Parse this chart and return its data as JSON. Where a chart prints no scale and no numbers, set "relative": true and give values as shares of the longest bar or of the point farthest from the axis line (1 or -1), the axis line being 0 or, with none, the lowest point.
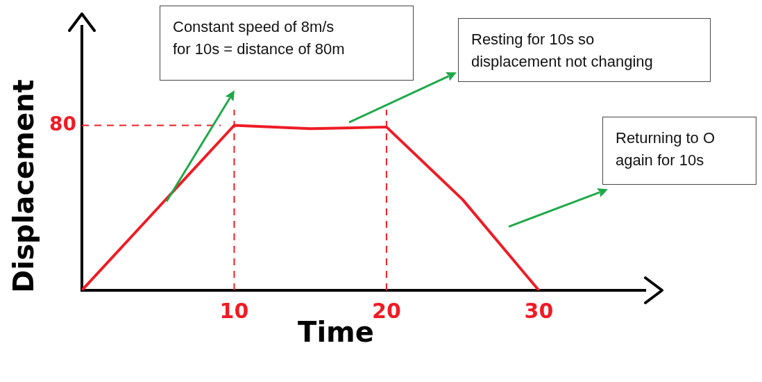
{
  "chart_data": {
    "type": "line",
    "xlabel": "Time",
    "ylabel": "Displacement",
    "x": [
      0,
      5,
      10,
      15,
      20,
      25,
      30
    ],
    "relative": true,
    "series": [
      {
        "color": "#ee1c25",
        "values": [
          0,
          0.5,
          1,
          0.98,
          0.99,
          0.55,
          0
        ]
      }
    ],
    "xlim": [
      0,
      37
    ],
    "xticks": [
      10,
      20,
      30
    ],
    "ref_lines": [
      {
        "axis": "y",
        "value": 1,
        "color": "#ee1c25",
        "line_style": "dashed"
      },
      {
        "axis": "x",
        "value": 10,
        "color": "#ee1c25",
        "line_style": "dashed"
      },
      {
        "axis": "x",
        "value": 20,
        "color": "#ee1c25",
        "line_style": "dashed"
      }
    ],
    "annotations": [
      "80",
      "Constant speed of 8m/s\nfor 10s = distance of 80m",
      "Resting for 10s so\ndisplacement not changing",
      "Returning to O\nagain for 10s"
    ],
    "grid": false,
    "legend": false,
    "marker": "none",
    "line_style": "solid",
    "tick_labels": "x"
  }
}
